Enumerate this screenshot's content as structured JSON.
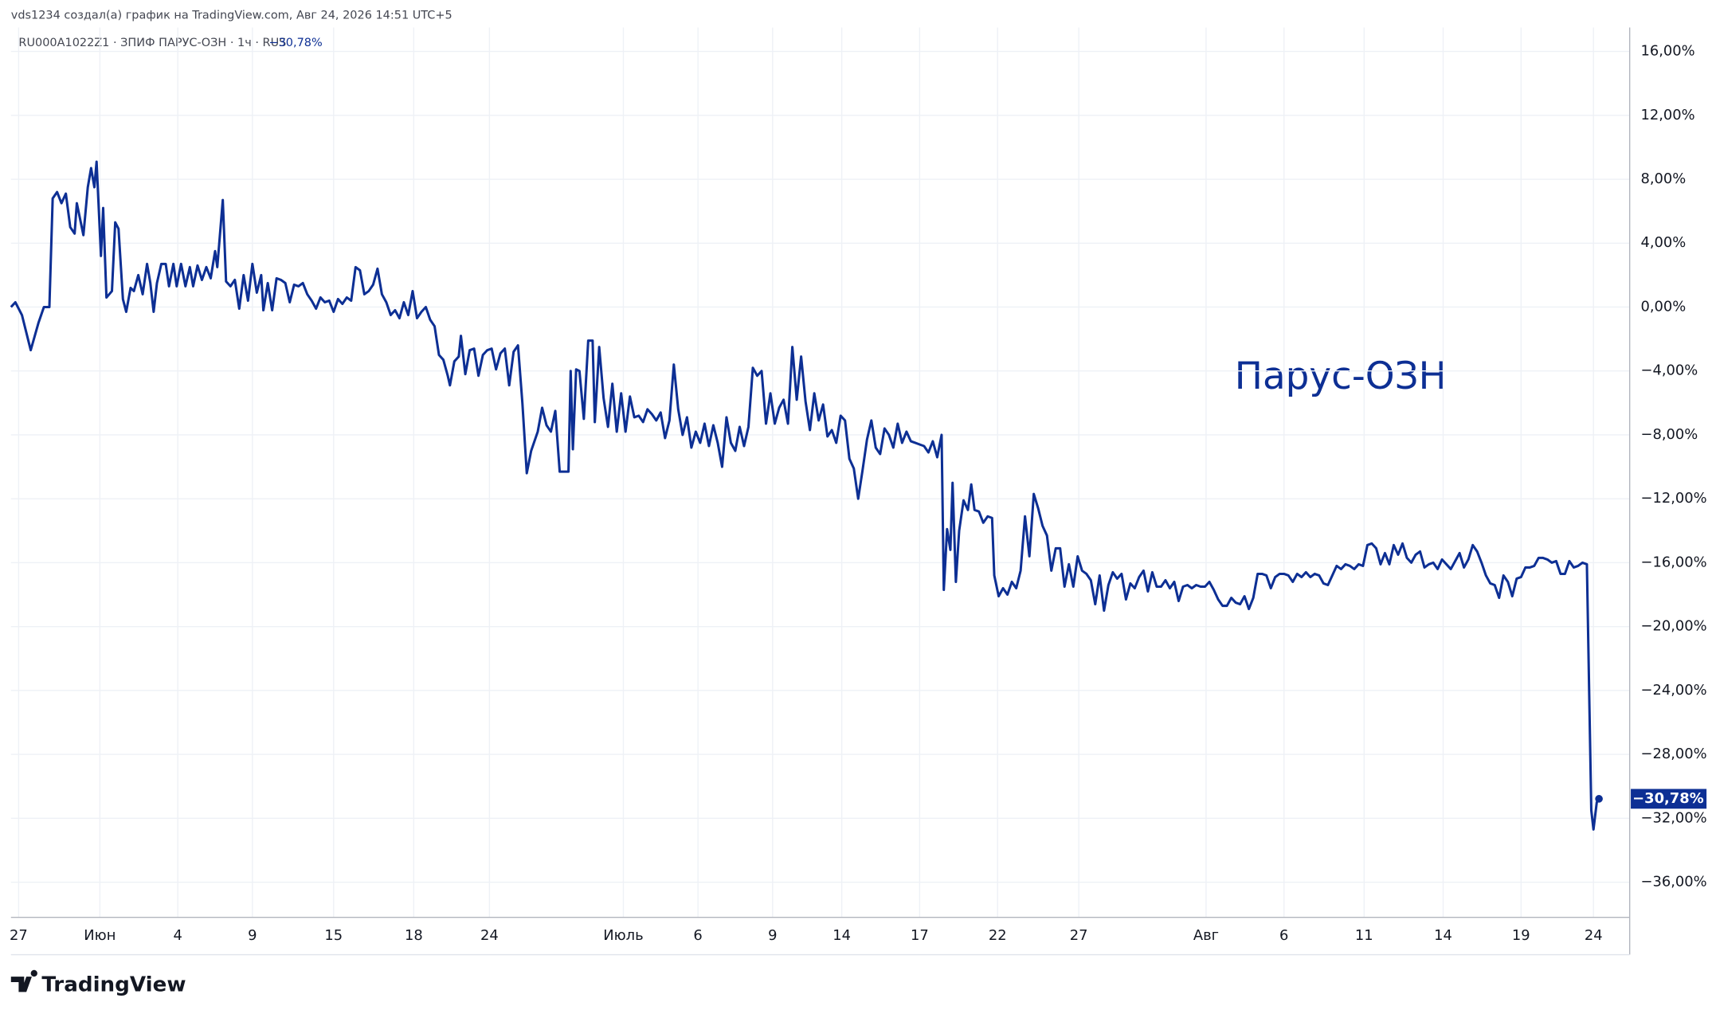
{
  "chart_data": {
    "type": "line",
    "title": "vds1234 создал(а) график на TradingView.com, Авг 24, 2026 14:51 UTC+5",
    "legend_text": "RU000A1022Z1 · ЗПИФ ПАРУС-ОЗН · 1ч · RUS",
    "annotation": "Парус-ОЗН",
    "brand": "TradingView",
    "last_label": {
      "value": -30.78,
      "label": "−30,78%"
    },
    "color": "#0d2f94",
    "grid": true,
    "xlim": [
      10,
      1485
    ],
    "ylim": [
      -38.2,
      17.5
    ],
    "xticks": [
      {
        "value": 17,
        "label": "27"
      },
      {
        "value": 91,
        "label": "Июн"
      },
      {
        "value": 162,
        "label": "4"
      },
      {
        "value": 230,
        "label": "9"
      },
      {
        "value": 304,
        "label": "15"
      },
      {
        "value": 377,
        "label": "18"
      },
      {
        "value": 446,
        "label": "24"
      },
      {
        "value": 568,
        "label": "Июль"
      },
      {
        "value": 636,
        "label": "6"
      },
      {
        "value": 704,
        "label": "9"
      },
      {
        "value": 767,
        "label": "14"
      },
      {
        "value": 838,
        "label": "17"
      },
      {
        "value": 909,
        "label": "22"
      },
      {
        "value": 983,
        "label": "27"
      },
      {
        "value": 1099,
        "label": "Авг"
      },
      {
        "value": 1170,
        "label": "6"
      },
      {
        "value": 1243,
        "label": "11"
      },
      {
        "value": 1315,
        "label": "14"
      },
      {
        "value": 1386,
        "label": "19"
      },
      {
        "value": 1452,
        "label": "24"
      }
    ],
    "yticks": [
      {
        "value": 16,
        "label": "16,00%"
      },
      {
        "value": 12,
        "label": "12,00%"
      },
      {
        "value": 8,
        "label": "8,00%"
      },
      {
        "value": 4,
        "label": "4,00%"
      },
      {
        "value": 0,
        "label": "0,00%"
      },
      {
        "value": -4,
        "label": "−4,00%"
      },
      {
        "value": -8,
        "label": "−8,00%"
      },
      {
        "value": -12,
        "label": "−12,00%"
      },
      {
        "value": -16,
        "label": "−16,00%"
      },
      {
        "value": -20,
        "label": "−20,00%"
      },
      {
        "value": -24,
        "label": "−24,00%"
      },
      {
        "value": -28,
        "label": "−28,00%"
      },
      {
        "value": -32,
        "label": "−32,00%"
      },
      {
        "value": -36,
        "label": "−36,00%"
      }
    ],
    "x": [
      10,
      14,
      20,
      28,
      35,
      40,
      45,
      48,
      52,
      56,
      60,
      64,
      68,
      70,
      76,
      80,
      83,
      86,
      88,
      92,
      94,
      97,
      102,
      105,
      108,
      112,
      115,
      119,
      122,
      126,
      130,
      134,
      137,
      140,
      143,
      147,
      151,
      154,
      158,
      161,
      165,
      169,
      173,
      176,
      180,
      184,
      188,
      192,
      196,
      198,
      203,
      206,
      210,
      214,
      218,
      222,
      226,
      230,
      234,
      238,
      240,
      244,
      248,
      252,
      256,
      260,
      264,
      268,
      272,
      276,
      280,
      284,
      288,
      292,
      296,
      300,
      304,
      308,
      312,
      316,
      320,
      324,
      328,
      332,
      336,
      340,
      344,
      348,
      352,
      356,
      360,
      364,
      368,
      372,
      376,
      380,
      384,
      388,
      392,
      396,
      400,
      404,
      408,
      410,
      414,
      418,
      420,
      424,
      428,
      432,
      436,
      440,
      444,
      448,
      452,
      456,
      460,
      464,
      468,
      472,
      476,
      480,
      484,
      490,
      494,
      498,
      502,
      506,
      510,
      514,
      518,
      520,
      522,
      525,
      528,
      532,
      536,
      540,
      542,
      546,
      550,
      554,
      558,
      562,
      566,
      570,
      574,
      578,
      582,
      586,
      590,
      594,
      598,
      602,
      606,
      610,
      614,
      618,
      622,
      626,
      630,
      634,
      638,
      642,
      646,
      650,
      654,
      658,
      662,
      666,
      670,
      674,
      678,
      682,
      686,
      690,
      694,
      698,
      702,
      706,
      710,
      714,
      718,
      722,
      726,
      730,
      734,
      738,
      742,
      746,
      750,
      754,
      758,
      762,
      766,
      770,
      774,
      778,
      782,
      786,
      790,
      794,
      798,
      802,
      806,
      810,
      814,
      818,
      822,
      826,
      830,
      834,
      838,
      842,
      846,
      850,
      854,
      858,
      860,
      863,
      866,
      868,
      871,
      874,
      878,
      882,
      885,
      888,
      892,
      896,
      900,
      904,
      906,
      910,
      914,
      918,
      922,
      926,
      930,
      934,
      938,
      942,
      946,
      950,
      954,
      958,
      962,
      966,
      970,
      974,
      978,
      982,
      986,
      990,
      994,
      998,
      1002,
      1006,
      1010,
      1014,
      1018,
      1022,
      1026,
      1030,
      1034,
      1038,
      1042,
      1046,
      1050,
      1054,
      1058,
      1062,
      1066,
      1070,
      1074,
      1078,
      1082,
      1086,
      1090,
      1094,
      1098,
      1102,
      1106,
      1110,
      1114,
      1118,
      1122,
      1126,
      1130,
      1134,
      1138,
      1142,
      1146,
      1150,
      1154,
      1158,
      1162,
      1166,
      1170,
      1174,
      1178,
      1182,
      1186,
      1190,
      1194,
      1198,
      1202,
      1206,
      1210,
      1214,
      1218,
      1222,
      1226,
      1230,
      1234,
      1238,
      1242,
      1246,
      1250,
      1254,
      1258,
      1262,
      1266,
      1270,
      1274,
      1278,
      1282,
      1286,
      1290,
      1294,
      1298,
      1302,
      1306,
      1310,
      1314,
      1318,
      1322,
      1326,
      1330,
      1334,
      1338,
      1342,
      1346,
      1350,
      1354,
      1358,
      1362,
      1366,
      1370,
      1374,
      1378,
      1382,
      1386,
      1390,
      1394,
      1398,
      1402,
      1406,
      1410,
      1414,
      1418,
      1422,
      1426,
      1430,
      1434,
      1438,
      1442,
      1446,
      1450,
      1452,
      1455,
      1457
    ],
    "values": [
      0,
      0.3,
      -0.5,
      -2.7,
      -1,
      0,
      0,
      6.8,
      7.2,
      6.5,
      7.1,
      5,
      4.6,
      6.5,
      4.5,
      7.5,
      8.7,
      7.5,
      9.1,
      3.2,
      6.2,
      0.6,
      1,
      5.3,
      4.9,
      0.5,
      -0.3,
      1.2,
      1,
      2,
      0.8,
      2.7,
      1.5,
      -0.3,
      1.5,
      2.7,
      2.7,
      1.3,
      2.7,
      1.3,
      2.7,
      1.3,
      2.5,
      1.3,
      2.6,
      1.7,
      2.5,
      1.8,
      3.5,
      2.5,
      6.7,
      1.6,
      1.3,
      1.7,
      -0.1,
      2,
      0.4,
      2.7,
      0.9,
      2,
      -0.2,
      1.5,
      -0.2,
      1.8,
      1.7,
      1.5,
      0.3,
      1.4,
      1.3,
      1.5,
      0.8,
      0.4,
      -0.1,
      0.6,
      0.3,
      0.4,
      -0.3,
      0.5,
      0.2,
      0.6,
      0.4,
      2.5,
      2.3,
      0.8,
      1,
      1.4,
      2.4,
      0.8,
      0.3,
      -0.5,
      -0.2,
      -0.7,
      0.3,
      -0.5,
      1,
      -0.7,
      -0.3,
      0,
      -0.8,
      -1.2,
      -3,
      -3.3,
      -4.3,
      -4.9,
      -3.4,
      -3.1,
      -1.8,
      -4.2,
      -2.7,
      -2.6,
      -4.3,
      -3,
      -2.7,
      -2.6,
      -3.9,
      -2.9,
      -2.6,
      -4.9,
      -2.8,
      -2.4,
      -6,
      -10.4,
      -9,
      -7.8,
      -6.3,
      -7.4,
      -7.8,
      -6.5,
      -10.3,
      -10.3,
      -10.3,
      -4,
      -8.9,
      -3.9,
      -4,
      -7,
      -2.1,
      -2.1,
      -7.2,
      -2.5,
      -5.7,
      -7.5,
      -4.8,
      -7.8,
      -5.4,
      -7.8,
      -5.6,
      -6.9,
      -6.8,
      -7.2,
      -6.4,
      -6.7,
      -7.1,
      -6.6,
      -8.2,
      -7.1,
      -3.6,
      -6.4,
      -8,
      -6.9,
      -8.8,
      -7.8,
      -8.5,
      -7.3,
      -8.7,
      -7.4,
      -8.5,
      -10,
      -6.9,
      -8.5,
      -9,
      -7.5,
      -8.7,
      -7.5,
      -3.8,
      -4.3,
      -4,
      -7.3,
      -5.4,
      -7.3,
      -6.3,
      -5.8,
      -7.3,
      -2.5,
      -5.8,
      -3.1,
      -5.9,
      -7.7,
      -5.4,
      -7.1,
      -6.1,
      -8.1,
      -7.7,
      -8.5,
      -6.8,
      -7.1,
      -9.5,
      -10.1,
      -12,
      -10.2,
      -8.3,
      -7.1,
      -8.8,
      -9.2,
      -7.6,
      -8,
      -8.8,
      -7.3,
      -8.5,
      -7.8,
      -8.4,
      -8.5,
      -8.6,
      -8.7,
      -9.1,
      -8.4,
      -9.4,
      -8,
      -17.7,
      -13.9,
      -15.2,
      -11,
      -17.2,
      -14,
      -12.1,
      -12.7,
      -11.1,
      -12.7,
      -12.8,
      -13.5,
      -13.1,
      -13.2,
      -16.8,
      -18.1,
      -17.6,
      -18,
      -17.2,
      -17.6,
      -16.5,
      -13.1,
      -15.6,
      -11.7,
      -12.6,
      -13.7,
      -14.3,
      -16.5,
      -15.1,
      -15.1,
      -17.5,
      -16.1,
      -17.5,
      -15.6,
      -16.5,
      -16.7,
      -17.1,
      -18.6,
      -16.8,
      -19,
      -17.4,
      -16.6,
      -17,
      -16.7,
      -18.3,
      -17.3,
      -17.6,
      -16.9,
      -16.5,
      -17.8,
      -16.6,
      -17.5,
      -17.5,
      -17.1,
      -17.6,
      -17.2,
      -18.4,
      -17.5,
      -17.4,
      -17.6,
      -17.4,
      -17.5,
      -17.5,
      -17.2,
      -17.7,
      -18.3,
      -18.7,
      -18.7,
      -18.2,
      -18.5,
      -18.6,
      -18.1,
      -18.9,
      -18.2,
      -16.7,
      -16.7,
      -16.8,
      -17.6,
      -16.9,
      -16.7,
      -16.7,
      -16.8,
      -17.2,
      -16.7,
      -16.9,
      -16.6,
      -16.9,
      -16.7,
      -16.8,
      -17.3,
      -17.4,
      -16.8,
      -16.2,
      -16.4,
      -16.1,
      -16.2,
      -16.4,
      -16.1,
      -16.2,
      -14.9,
      -14.8,
      -15.1,
      -16.1,
      -15.4,
      -16.1,
      -14.9,
      -15.5,
      -14.8,
      -15.7,
      -16,
      -15.5,
      -15.3,
      -16.3,
      -16.1,
      -16,
      -16.4,
      -15.8,
      -16.1,
      -16.4,
      -15.9,
      -15.4,
      -16.3,
      -15.8,
      -14.9,
      -15.3,
      -16,
      -16.8,
      -17.3,
      -17.4,
      -18.2,
      -16.8,
      -17.2,
      -18.1,
      -17,
      -16.9,
      -16.3,
      -16.3,
      -16.2,
      -15.7,
      -15.7,
      -15.8,
      -16,
      -15.9,
      -16.7,
      -16.7,
      -15.9,
      -16.3,
      -16.2,
      -16,
      -16.1,
      -31.5,
      -32.7,
      -31,
      -30.78
    ]
  }
}
